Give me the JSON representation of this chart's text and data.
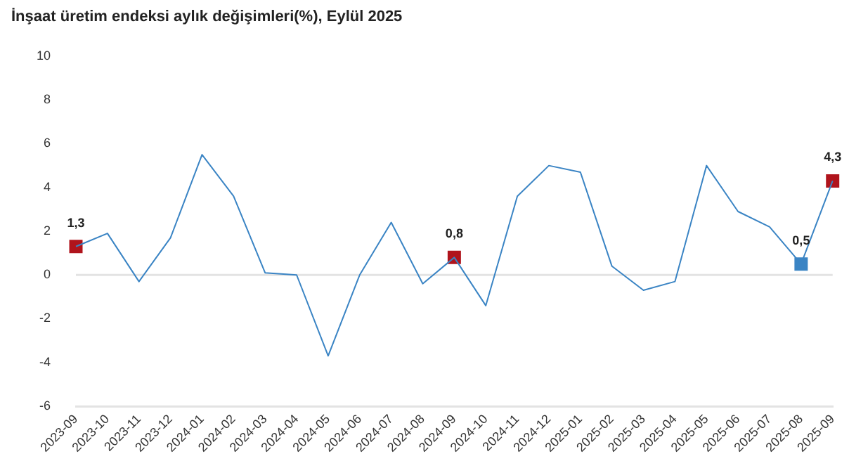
{
  "chart_data": {
    "type": "line",
    "title": "İnşaat üretim endeksi aylık değişimleri(%), Eylül 2025",
    "categories": [
      "2023-09",
      "2023-10",
      "2023-11",
      "2023-12",
      "2024-01",
      "2024-02",
      "2024-03",
      "2024-04",
      "2024-05",
      "2024-06",
      "2024-07",
      "2024-08",
      "2024-09",
      "2024-10",
      "2024-11",
      "2024-12",
      "2025-01",
      "2025-02",
      "2025-03",
      "2025-04",
      "2025-05",
      "2025-06",
      "2025-07",
      "2025-08",
      "2025-09"
    ],
    "series": [
      {
        "color": "#3a84c4",
        "marker": "none",
        "values": [
          1.3,
          1.9,
          -0.3,
          1.7,
          5.5,
          3.6,
          0.1,
          0.0,
          -3.7,
          0.0,
          2.4,
          -0.4,
          0.8,
          -1.4,
          3.6,
          5.0,
          4.7,
          0.4,
          -0.7,
          -0.3,
          5.0,
          2.9,
          2.2,
          0.5,
          4.3
        ]
      },
      {
        "type": "scatter",
        "marker": "square",
        "values": [
          1.3,
          null,
          null,
          null,
          null,
          null,
          null,
          null,
          null,
          null,
          null,
          null,
          0.8,
          null,
          null,
          null,
          null,
          null,
          null,
          null,
          null,
          null,
          null,
          0.5,
          4.3
        ],
        "colors": [
          "#b0141c",
          null,
          null,
          null,
          null,
          null,
          null,
          null,
          null,
          null,
          null,
          null,
          "#b0141c",
          null,
          null,
          null,
          null,
          null,
          null,
          null,
          null,
          null,
          null,
          "#3a84c4",
          "#b0141c"
        ],
        "value_labels": [
          "1,3",
          null,
          null,
          null,
          null,
          null,
          null,
          null,
          null,
          null,
          null,
          null,
          "0,8",
          null,
          null,
          null,
          null,
          null,
          null,
          null,
          null,
          null,
          null,
          "0,5",
          "4,3"
        ]
      }
    ],
    "ylim": [
      -6,
      10
    ],
    "yticks": [
      -6,
      -4,
      -2,
      0,
      2,
      4,
      6,
      8,
      10
    ],
    "grid": false,
    "legend": false,
    "line_style": "solid",
    "ref_lines": [
      {
        "axis": "y",
        "value": 0,
        "color": "#e3e3e3"
      }
    ]
  }
}
